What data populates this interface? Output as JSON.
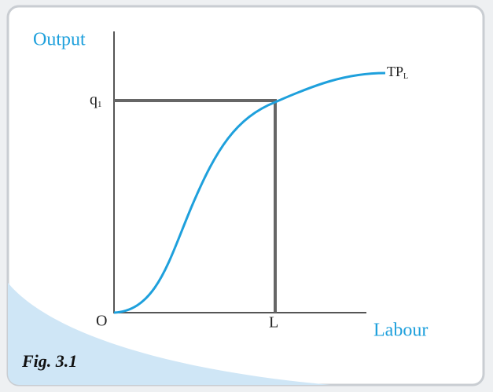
{
  "figure": {
    "caption": "Fig. 3.1",
    "y_axis_label": "Output",
    "x_axis_label": "Labour",
    "origin_label": "O",
    "y_marker": {
      "main": "q",
      "sub": "1"
    },
    "x_marker": "L",
    "curve_label": {
      "main": "TP",
      "sub": "L"
    }
  }
}
